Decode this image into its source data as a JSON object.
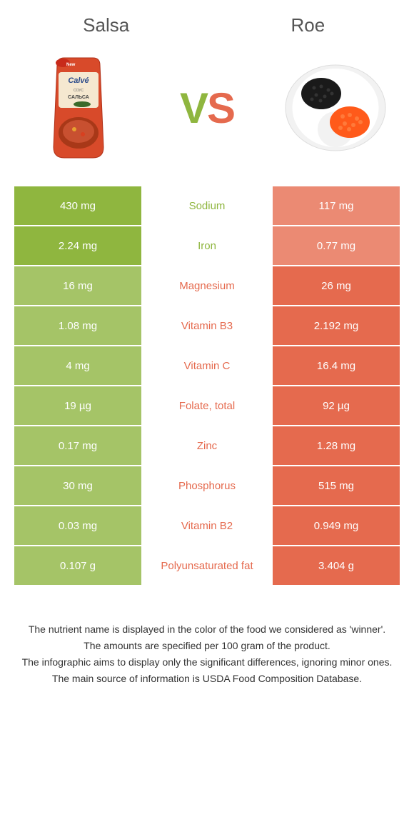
{
  "header": {
    "left_title": "Salsa",
    "right_title": "Roe",
    "vs_v": "V",
    "vs_s": "S"
  },
  "colors": {
    "salsa": "#8fb63f",
    "salsa_dim": "#a5c467",
    "roe": "#e56a4e",
    "roe_dim": "#eb8a73",
    "background": "#ffffff"
  },
  "rows": [
    {
      "nutrient": "Sodium",
      "left": "430 mg",
      "right": "117 mg",
      "winner": "salsa"
    },
    {
      "nutrient": "Iron",
      "left": "2.24 mg",
      "right": "0.77 mg",
      "winner": "salsa"
    },
    {
      "nutrient": "Magnesium",
      "left": "16 mg",
      "right": "26 mg",
      "winner": "roe"
    },
    {
      "nutrient": "Vitamin B3",
      "left": "1.08 mg",
      "right": "2.192 mg",
      "winner": "roe"
    },
    {
      "nutrient": "Vitamin C",
      "left": "4 mg",
      "right": "16.4 mg",
      "winner": "roe"
    },
    {
      "nutrient": "Folate, total",
      "left": "19 µg",
      "right": "92 µg",
      "winner": "roe"
    },
    {
      "nutrient": "Zinc",
      "left": "0.17 mg",
      "right": "1.28 mg",
      "winner": "roe"
    },
    {
      "nutrient": "Phosphorus",
      "left": "30 mg",
      "right": "515 mg",
      "winner": "roe"
    },
    {
      "nutrient": "Vitamin B2",
      "left": "0.03 mg",
      "right": "0.949 mg",
      "winner": "roe"
    },
    {
      "nutrient": "Polyunsaturated fat",
      "left": "0.107 g",
      "right": "3.404 g",
      "winner": "roe"
    }
  ],
  "footer": {
    "line1": "The nutrient name is displayed in the color of the food we considered as 'winner'.",
    "line2": "The amounts are specified per 100 gram of the product.",
    "line3": "The infographic aims to display only the significant differences, ignoring minor ones.",
    "line4": "The main source of information is USDA Food Composition Database."
  }
}
